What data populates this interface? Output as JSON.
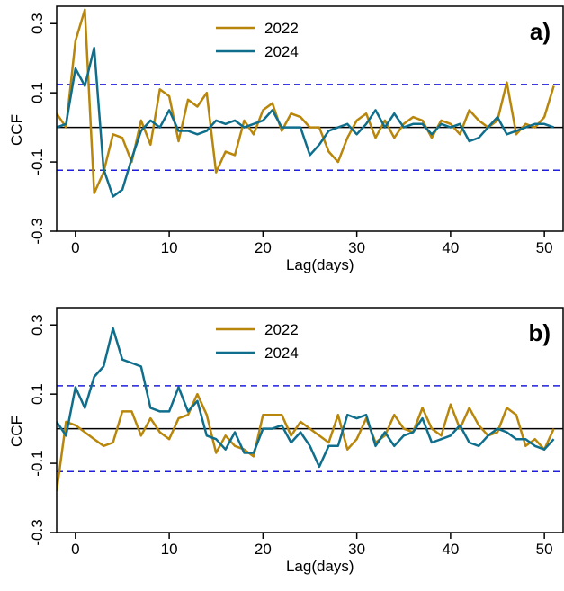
{
  "colors": {
    "c2022": "#B8860B",
    "c2024": "#0F6E8C",
    "ci": "#1E1EE6",
    "zero": "#000000"
  },
  "chart_data": [
    {
      "type": "line",
      "panel_label": "a)",
      "xlabel": "Lag(days)",
      "ylabel": "CCF",
      "xlim": [
        -2,
        52
      ],
      "ylim": [
        -0.3,
        0.35
      ],
      "xticks": [
        0,
        10,
        20,
        30,
        40,
        50
      ],
      "yticks": [
        -0.3,
        -0.1,
        0.1,
        0.3
      ],
      "xtick_labels": [
        "0",
        "10",
        "20",
        "30",
        "40",
        "50"
      ],
      "ytick_labels": [
        "-0.3",
        "-0.1",
        "0.1",
        "0.3"
      ],
      "conf_limit": 0.124,
      "legend_position": "top-center",
      "x_start": -2,
      "series": [
        {
          "name": "2022",
          "color_key": "c2022",
          "values": [
            0.04,
            0.0,
            0.25,
            0.34,
            -0.19,
            -0.13,
            -0.02,
            -0.03,
            -0.1,
            0.02,
            -0.05,
            0.11,
            0.09,
            -0.04,
            0.08,
            0.06,
            0.1,
            -0.13,
            -0.07,
            -0.08,
            0.02,
            -0.02,
            0.05,
            0.07,
            -0.01,
            0.04,
            0.03,
            0.0,
            0.0,
            -0.07,
            -0.1,
            -0.03,
            0.02,
            0.04,
            -0.03,
            0.02,
            -0.03,
            0.01,
            0.03,
            0.02,
            -0.03,
            0.02,
            0.01,
            -0.02,
            0.05,
            0.02,
            0.0,
            0.02,
            0.13,
            -0.02,
            0.01,
            0.0,
            0.03,
            0.12
          ]
        },
        {
          "name": "2024",
          "color_key": "c2024",
          "values": [
            0.0,
            0.01,
            0.17,
            0.12,
            0.23,
            -0.12,
            -0.2,
            -0.18,
            -0.09,
            -0.01,
            0.02,
            0.0,
            0.05,
            -0.01,
            -0.01,
            -0.02,
            -0.01,
            0.02,
            0.01,
            0.02,
            0.0,
            0.01,
            0.02,
            0.05,
            0.0,
            0.0,
            0.0,
            -0.08,
            -0.05,
            -0.01,
            0.0,
            0.01,
            -0.02,
            0.01,
            0.05,
            0.0,
            0.04,
            0.0,
            0.01,
            0.01,
            -0.02,
            0.01,
            0.0,
            0.01,
            -0.04,
            -0.03,
            0.0,
            0.03,
            -0.02,
            -0.01,
            0.0,
            0.01,
            0.01,
            0.0
          ]
        }
      ]
    },
    {
      "type": "line",
      "panel_label": "b)",
      "xlabel": "Lag(days)",
      "ylabel": "CCF",
      "xlim": [
        -2,
        52
      ],
      "ylim": [
        -0.3,
        0.35
      ],
      "xticks": [
        0,
        10,
        20,
        30,
        40,
        50
      ],
      "yticks": [
        -0.3,
        -0.1,
        0.1,
        0.3
      ],
      "xtick_labels": [
        "0",
        "10",
        "20",
        "30",
        "40",
        "50"
      ],
      "ytick_labels": [
        "-0.3",
        "-0.1",
        "0.1",
        "0.3"
      ],
      "conf_limit": 0.124,
      "legend_position": "top-center",
      "x_start": -2,
      "series": [
        {
          "name": "2022",
          "color_key": "c2022",
          "values": [
            -0.18,
            0.02,
            0.01,
            -0.01,
            -0.03,
            -0.05,
            -0.04,
            0.05,
            0.05,
            -0.02,
            0.03,
            -0.01,
            -0.03,
            0.03,
            0.04,
            0.1,
            0.04,
            -0.07,
            -0.02,
            -0.05,
            -0.06,
            -0.08,
            0.04,
            0.04,
            0.04,
            -0.02,
            0.02,
            0.0,
            -0.02,
            -0.04,
            0.04,
            -0.06,
            -0.03,
            0.03,
            -0.04,
            -0.02,
            0.04,
            0.0,
            -0.01,
            0.06,
            0.0,
            -0.02,
            0.07,
            0.0,
            0.06,
            0.01,
            -0.02,
            -0.01,
            0.06,
            0.04,
            -0.05,
            -0.03,
            -0.06,
            0.0
          ]
        },
        {
          "name": "2024",
          "color_key": "c2024",
          "values": [
            0.02,
            -0.02,
            0.12,
            0.06,
            0.15,
            0.18,
            0.29,
            0.2,
            0.19,
            0.18,
            0.06,
            0.05,
            0.05,
            0.12,
            0.05,
            0.08,
            -0.02,
            -0.03,
            -0.06,
            -0.01,
            -0.07,
            -0.07,
            0.0,
            0.0,
            0.01,
            -0.04,
            -0.01,
            -0.05,
            -0.11,
            -0.05,
            -0.05,
            0.04,
            0.03,
            0.04,
            -0.05,
            -0.01,
            -0.05,
            -0.02,
            -0.01,
            0.03,
            -0.04,
            -0.03,
            -0.02,
            0.01,
            -0.04,
            -0.05,
            -0.02,
            0.0,
            -0.01,
            -0.03,
            -0.03,
            -0.05,
            -0.06,
            -0.03
          ]
        }
      ]
    }
  ]
}
